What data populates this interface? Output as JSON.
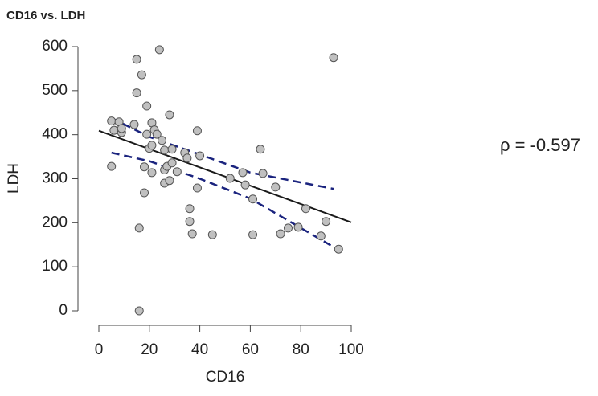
{
  "chart_data": {
    "type": "scatter",
    "title": "CD16 vs. LDH",
    "xlabel": "CD16",
    "ylabel": "LDH",
    "annotation": "ρ = -0.597",
    "xlim": [
      0,
      100
    ],
    "xticks": [
      0,
      20,
      40,
      60,
      80,
      100
    ],
    "ylim": [
      0,
      600
    ],
    "yticks": [
      0,
      100,
      200,
      300,
      400,
      500,
      600
    ],
    "color": "#c0c0c0",
    "x": [
      5,
      5,
      6,
      8,
      9,
      9,
      14,
      15,
      15,
      17,
      16,
      16,
      18,
      18,
      19,
      19,
      20,
      21,
      21,
      21,
      22,
      23,
      24,
      25,
      26,
      26,
      26,
      27,
      28,
      28,
      29,
      29,
      31,
      34,
      35,
      36,
      36,
      37,
      39,
      39,
      40,
      45,
      52,
      57,
      58,
      61,
      61,
      64,
      65,
      70,
      72,
      75,
      79,
      82,
      88,
      90,
      93,
      95
    ],
    "values": [
      431,
      328,
      410,
      429,
      405,
      414,
      423,
      495,
      571,
      536,
      188,
      0,
      268,
      327,
      465,
      401,
      369,
      314,
      427,
      376,
      411,
      401,
      593,
      387,
      320,
      290,
      365,
      328,
      445,
      296,
      336,
      367,
      316,
      359,
      347,
      232,
      203,
      175,
      409,
      279,
      352,
      173,
      301,
      314,
      286,
      254,
      173,
      367,
      312,
      281,
      175,
      188,
      190,
      232,
      170,
      203,
      575,
      140
    ],
    "fit": {
      "color": "#1a1a1a",
      "x": [
        0,
        100
      ],
      "values": [
        409,
        201
      ]
    },
    "band_upper": {
      "color": "#1a237e",
      "x": [
        5,
        20,
        40,
        60,
        93
      ],
      "values": [
        438,
        395,
        355,
        314,
        277
      ]
    },
    "band_lower": {
      "color": "#1a237e",
      "x": [
        5,
        20,
        40,
        60,
        96
      ],
      "values": [
        359,
        340,
        300,
        255,
        135
      ]
    }
  }
}
